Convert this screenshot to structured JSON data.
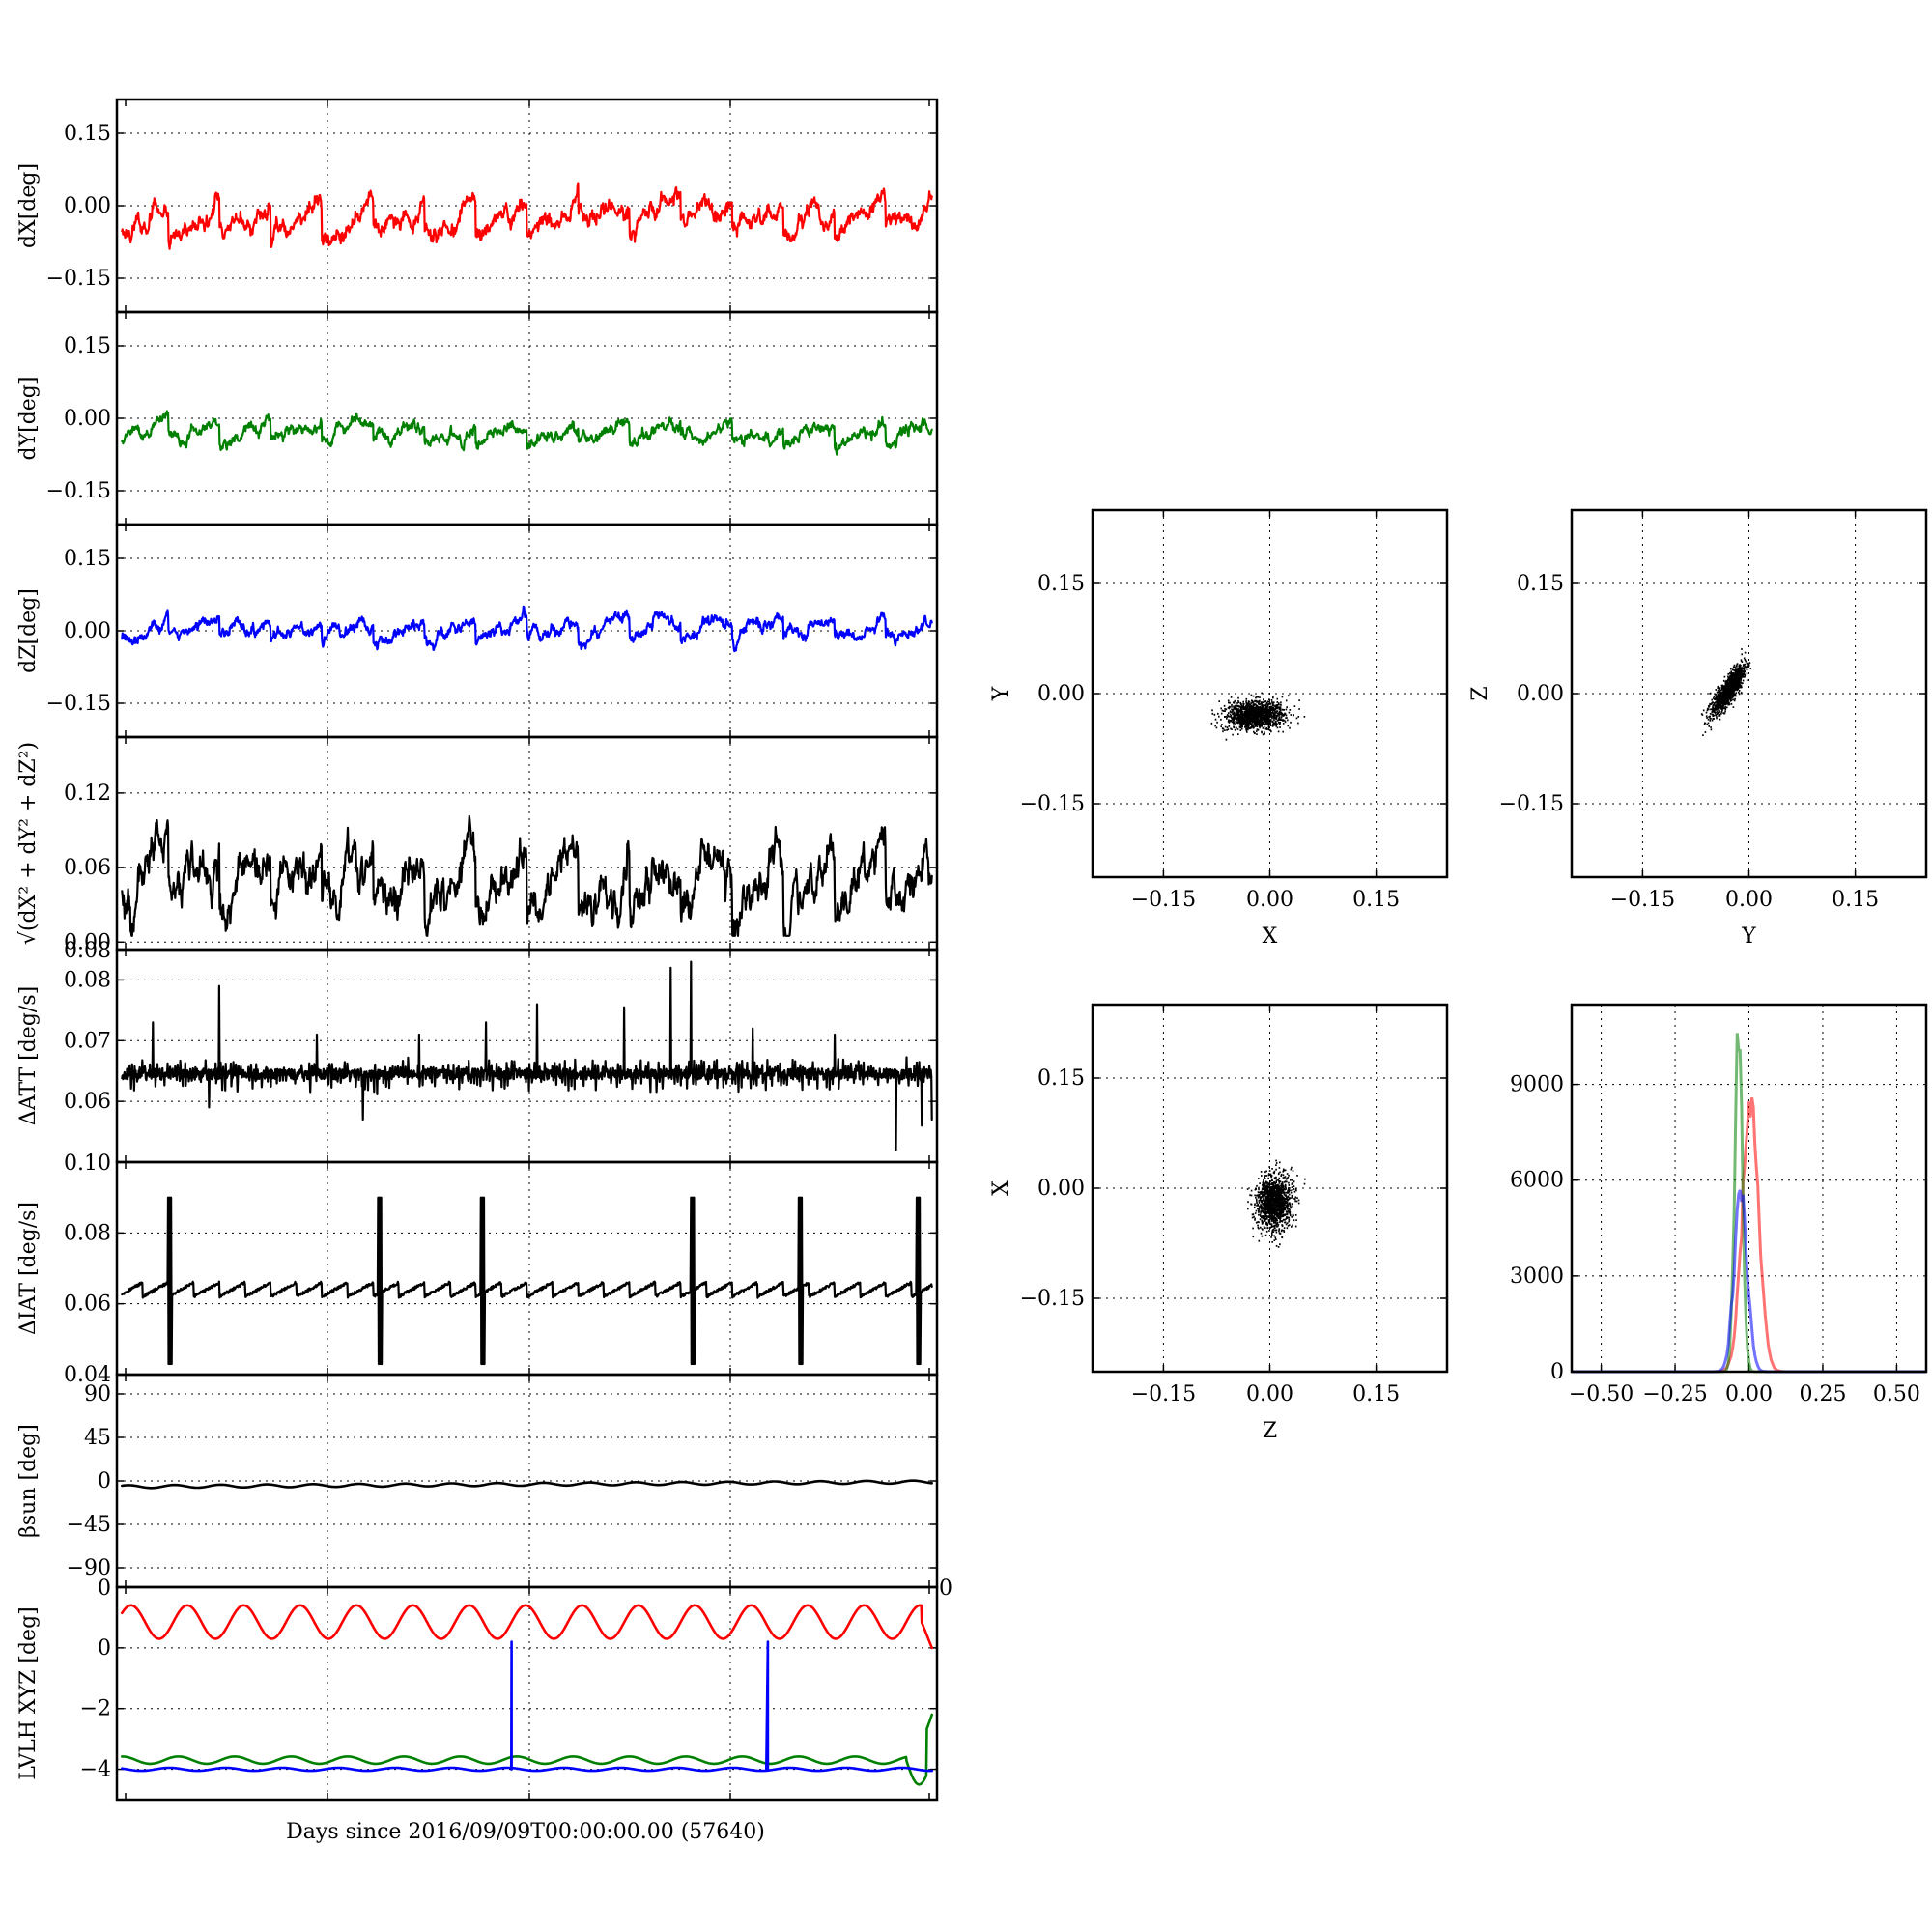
{
  "figure": {
    "xlabel": "Days since 2016/09/09T00:00:00.00 (57640)"
  },
  "colors": {
    "x": "#ff0000",
    "y": "#008000",
    "z": "#0000ff",
    "mag": "#000000"
  },
  "chart_data": [
    {
      "id": "dX",
      "type": "line",
      "ylabel": "dX[deg]",
      "xlim": [
        0,
        8
      ],
      "ylim": [
        -0.22,
        0.22
      ],
      "yticks": [
        -0.15,
        0.0,
        0.15
      ],
      "ytick_labels": [
        "−0.15",
        "0.00",
        "0.15"
      ],
      "series": [
        {
          "color": "#ff0000",
          "baseline": -0.025,
          "amplitude": 0.03,
          "period": 0.5,
          "noise": 0.012,
          "min": -0.11,
          "max": 0.07,
          "seed": 11
        }
      ]
    },
    {
      "id": "dY",
      "type": "line",
      "ylabel": "dY[deg]",
      "xlim": [
        0,
        8
      ],
      "ylim": [
        -0.22,
        0.22
      ],
      "yticks": [
        -0.15,
        0.0,
        0.15
      ],
      "ytick_labels": [
        "−0.15",
        "0.00",
        "0.15"
      ],
      "series": [
        {
          "color": "#008000",
          "baseline": -0.03,
          "amplitude": 0.018,
          "period": 0.5,
          "noise": 0.008,
          "min": -0.09,
          "max": 0.015,
          "seed": 23
        }
      ]
    },
    {
      "id": "dZ",
      "type": "line",
      "ylabel": "dZ[deg]",
      "xlim": [
        0,
        8
      ],
      "ylim": [
        -0.22,
        0.22
      ],
      "yticks": [
        -0.15,
        0.0,
        0.15
      ],
      "ytick_labels": [
        "−0.15",
        "0.00",
        "0.15"
      ],
      "series": [
        {
          "color": "#0000ff",
          "baseline": 0.005,
          "amplitude": 0.018,
          "period": 0.5,
          "noise": 0.008,
          "min": -0.07,
          "max": 0.07,
          "seed": 37
        }
      ]
    },
    {
      "id": "dMag",
      "type": "line",
      "ylabel": "√(dX² + dY² + dZ²)",
      "xlim": [
        0,
        8
      ],
      "ylim": [
        -0.006,
        0.165
      ],
      "yticks": [
        0.0,
        0.06,
        0.12
      ],
      "ytick_labels": [
        "0.00",
        "0.06",
        "0.12"
      ],
      "series": [
        {
          "color": "#000000",
          "baseline": 0.048,
          "amplitude": 0.02,
          "period": 0.5,
          "noise": 0.01,
          "min": 0.005,
          "max": 0.125,
          "seed": 51
        }
      ]
    },
    {
      "id": "dATT",
      "type": "line",
      "ylabel": "ΔATT [deg/s]",
      "xlim": [
        0,
        8
      ],
      "ylim": [
        0.05,
        0.085
      ],
      "yticks": [
        0.06,
        0.07,
        0.08
      ],
      "ytick_labels": [
        "0.06",
        "0.07",
        "0.08"
      ],
      "top_left_label": "0.08",
      "series": [
        {
          "color": "#000000",
          "baseline": 0.0645,
          "noise": 0.0009,
          "spikes_up": [
            [
              0.35,
              0.073
            ],
            [
              1.0,
              0.079
            ],
            [
              1.95,
              0.071
            ],
            [
              2.95,
              0.071
            ],
            [
              3.6,
              0.073
            ],
            [
              4.1,
              0.076
            ],
            [
              4.95,
              0.0755
            ],
            [
              5.4,
              0.082
            ],
            [
              5.6,
              0.083
            ],
            [
              6.2,
              0.072
            ],
            [
              7.0,
              0.071
            ]
          ],
          "spikes_down": [
            [
              0.9,
              0.059
            ],
            [
              2.4,
              0.057
            ],
            [
              7.6,
              0.052
            ],
            [
              7.85,
              0.056
            ],
            [
              7.95,
              0.057
            ]
          ]
        }
      ]
    },
    {
      "id": "dIAT",
      "type": "line",
      "ylabel": "ΔIAT [deg/s]",
      "xlim": [
        0,
        8
      ],
      "ylim": [
        0.04,
        0.1
      ],
      "yticks": [
        0.04,
        0.06,
        0.08
      ],
      "ytick_labels": [
        "0.04",
        "0.06",
        "0.08"
      ],
      "top_left_label": "0.10",
      "series": [
        {
          "color": "#000000",
          "baseline": 0.064,
          "sawtooth": 0.004,
          "period": 0.25,
          "bursts": [
            0.5,
            2.55,
            3.55,
            5.6,
            6.65,
            7.8
          ],
          "burst_high": 0.09,
          "burst_low": 0.043
        }
      ]
    },
    {
      "id": "betaSun",
      "type": "line",
      "ylabel": "βsun [deg]",
      "xlim": [
        0,
        8
      ],
      "ylim": [
        -110,
        110
      ],
      "yticks": [
        -90,
        -45,
        0,
        45,
        90
      ],
      "ytick_labels": [
        "−90",
        "−45",
        "0",
        "45",
        "90"
      ],
      "series": [
        {
          "color": "#000000",
          "baseline": -6,
          "amplitude": 1.5,
          "period": 0.45,
          "drift": 5
        }
      ]
    },
    {
      "id": "lvlh",
      "type": "line",
      "ylabel": "LVLH XYZ [deg]",
      "xlim": [
        0,
        8
      ],
      "ylim": [
        -5.0,
        2.0
      ],
      "yticks": [
        -4,
        -2,
        0
      ],
      "ytick_labels": [
        "−4",
        "−2",
        "0"
      ],
      "top_left_label": "0",
      "top_right_label": "0",
      "series": [
        {
          "color": "#ff0000",
          "baseline": 0.85,
          "amplitude": 0.55,
          "period": 0.55
        },
        {
          "color": "#008000",
          "baseline": -3.7,
          "amplitude": 0.12,
          "period": 0.55,
          "end_wiggle": true
        },
        {
          "color": "#0000ff",
          "baseline": -4.0,
          "amplitude": 0.05,
          "period": 0.55,
          "spikes_to": 0.2,
          "spikes_at": [
            3.85,
            6.35
          ]
        }
      ]
    },
    {
      "id": "scatterXY",
      "type": "scatter",
      "xlabel": "X",
      "ylabel": "Y",
      "xlim": [
        -0.25,
        0.25
      ],
      "ylim": [
        -0.25,
        0.25
      ],
      "xticks": [
        -0.15,
        0.0,
        0.15
      ],
      "yticks": [
        -0.15,
        0.0,
        0.15
      ],
      "tick_labels": [
        "−0.15",
        "0.00",
        "0.15"
      ],
      "cloud": {
        "cx": -0.02,
        "cy": -0.03,
        "sx": 0.025,
        "sy": 0.012,
        "rho": 0.1,
        "n": 1400,
        "seed": 71
      }
    },
    {
      "id": "scatterYZ",
      "type": "scatter",
      "xlabel": "Y",
      "ylabel": "Z",
      "xlim": [
        -0.25,
        0.25
      ],
      "ylim": [
        -0.25,
        0.25
      ],
      "xticks": [
        -0.15,
        0.0,
        0.15
      ],
      "yticks": [
        -0.15,
        0.0,
        0.15
      ],
      "tick_labels": [
        "−0.15",
        "0.00",
        "0.15"
      ],
      "cloud": {
        "cx": -0.03,
        "cy": 0.005,
        "sx": 0.014,
        "sy": 0.02,
        "rho": 0.85,
        "n": 1400,
        "seed": 83
      }
    },
    {
      "id": "scatterZX",
      "type": "scatter",
      "xlabel": "Z",
      "ylabel": "X",
      "xlim": [
        -0.25,
        0.25
      ],
      "ylim": [
        -0.25,
        0.25
      ],
      "xticks": [
        -0.15,
        0.0,
        0.15
      ],
      "yticks": [
        -0.15,
        0.0,
        0.15
      ],
      "tick_labels": [
        "−0.15",
        "0.00",
        "0.15"
      ],
      "cloud": {
        "cx": 0.005,
        "cy": -0.02,
        "sx": 0.015,
        "sy": 0.022,
        "rho": 0.1,
        "n": 1400,
        "seed": 97
      }
    },
    {
      "id": "histogram",
      "type": "area",
      "xlim": [
        -0.6,
        0.6
      ],
      "ylim": [
        0,
        11500
      ],
      "xticks": [
        -0.5,
        -0.25,
        0.0,
        0.25,
        0.5
      ],
      "xtick_labels": [
        "−0.50",
        "−0.25",
        "0.00",
        "0.25",
        "0.50"
      ],
      "yticks": [
        0,
        3000,
        6000,
        9000
      ],
      "ytick_labels": [
        "0",
        "3000",
        "6000",
        "9000"
      ],
      "series": [
        {
          "color": "#ff0000",
          "center": 0.005,
          "width": 0.028,
          "peak": 8300
        },
        {
          "color": "#008000",
          "center": -0.035,
          "width": 0.013,
          "peak": 10800
        },
        {
          "color": "#0000ff",
          "center": -0.028,
          "width": 0.022,
          "peak": 5600
        }
      ]
    }
  ]
}
